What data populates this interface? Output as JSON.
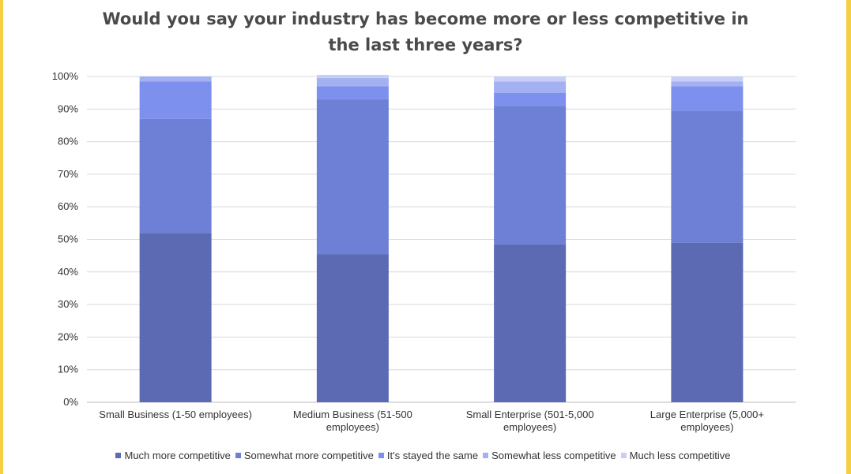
{
  "chart_data": {
    "type": "bar",
    "stacked": true,
    "title": "Would you say your industry has become more or less competitive in the last three years?",
    "title_lines": [
      "Would you say your industry has become more or less competitive in",
      "the last three years?"
    ],
    "categories": [
      [
        "Small Business (1-50 employees)"
      ],
      [
        "Medium Business (51-500",
        "employees)"
      ],
      [
        "Small Enterprise (501-5,000",
        "employees)"
      ],
      [
        "Large Enterprise (5,000+",
        "employees)"
      ]
    ],
    "series": [
      {
        "name": "Much more competitive",
        "color": "#5c6ab4",
        "values": [
          52,
          45.5,
          48.5,
          49
        ]
      },
      {
        "name": "Somewhat more competitive",
        "color": "#6e80d6",
        "values": [
          35,
          47.5,
          42.5,
          40.5
        ]
      },
      {
        "name": "It's stayed the same",
        "color": "#7d90ee",
        "values": [
          11.5,
          4,
          4,
          7.5
        ]
      },
      {
        "name": "Somewhat less competitive",
        "color": "#a3b0f2",
        "values": [
          1.5,
          2.5,
          3.5,
          1.5
        ]
      },
      {
        "name": "Much less competitive",
        "color": "#c8cff6",
        "values": [
          0,
          1,
          1.5,
          1.5
        ]
      }
    ],
    "y_ticks": [
      "0%",
      "10%",
      "20%",
      "30%",
      "40%",
      "50%",
      "60%",
      "70%",
      "80%",
      "90%",
      "100%"
    ],
    "ylim": [
      0,
      100
    ],
    "grid": true,
    "legend_position": "bottom"
  }
}
